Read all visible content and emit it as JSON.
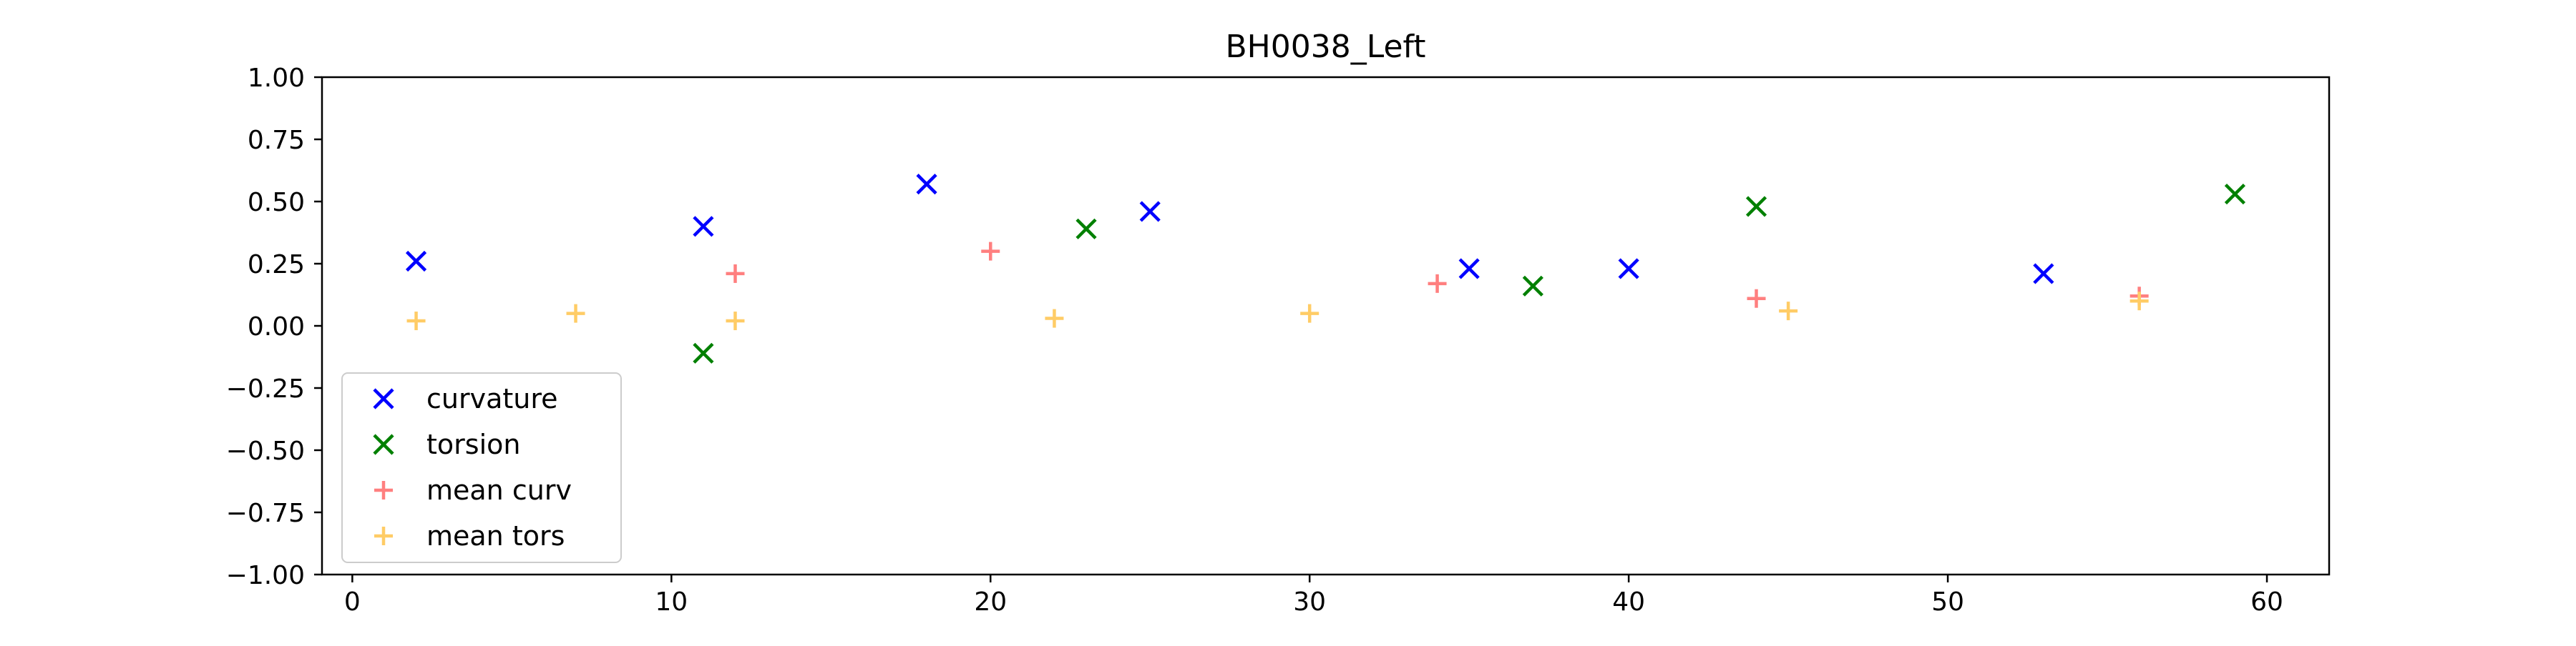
{
  "chart_data": {
    "type": "scatter",
    "title": "BH0038_Left",
    "xlabel": "",
    "ylabel": "",
    "xlim": [
      -0.95,
      61.95
    ],
    "ylim": [
      -1.0,
      1.0
    ],
    "x_ticks": [
      0,
      10,
      20,
      30,
      40,
      50,
      60
    ],
    "x_tick_labels": [
      "0",
      "10",
      "20",
      "30",
      "40",
      "50",
      "60"
    ],
    "y_ticks": [
      1.0,
      0.75,
      0.5,
      0.25,
      0.0,
      -0.25,
      -0.5,
      -0.75,
      -1.0
    ],
    "y_tick_labels": [
      "1.00",
      "0.75",
      "0.50",
      "0.25",
      "0.00",
      "−0.25",
      "−0.50",
      "−0.75",
      "−1.00"
    ],
    "grid": false,
    "legend_position": "lower-left",
    "series": [
      {
        "name": "curvature",
        "marker": "x",
        "color": "#0000ff",
        "points": [
          [
            2,
            0.26
          ],
          [
            11,
            0.4
          ],
          [
            18,
            0.57
          ],
          [
            25,
            0.46
          ],
          [
            35,
            0.23
          ],
          [
            40,
            0.23
          ],
          [
            53,
            0.21
          ]
        ]
      },
      {
        "name": "torsion",
        "marker": "x",
        "color": "#008000",
        "points": [
          [
            11,
            -0.11
          ],
          [
            23,
            0.39
          ],
          [
            37,
            0.16
          ],
          [
            44,
            0.48
          ],
          [
            59,
            0.53
          ]
        ]
      },
      {
        "name": "mean curv",
        "marker": "+",
        "color": "#ff7f7f",
        "points": [
          [
            12,
            0.21
          ],
          [
            20,
            0.3
          ],
          [
            34,
            0.17
          ],
          [
            44,
            0.11
          ],
          [
            56,
            0.12
          ]
        ]
      },
      {
        "name": "mean tors",
        "marker": "+",
        "color": "#ffcc66",
        "points": [
          [
            2,
            0.02
          ],
          [
            7,
            0.05
          ],
          [
            12,
            0.02
          ],
          [
            22,
            0.03
          ],
          [
            30,
            0.05
          ],
          [
            45,
            0.06
          ],
          [
            56,
            0.1
          ]
        ]
      }
    ]
  }
}
